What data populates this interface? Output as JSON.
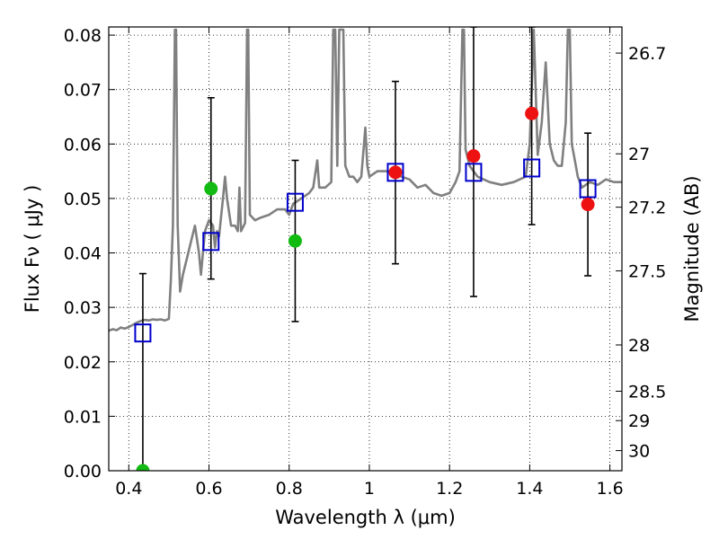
{
  "chart_data": {
    "type": "scatter",
    "xlabel": "Wavelength  λ (μm)",
    "ylabel": "Flux  Fν  ( μJy )",
    "ylabel_right": "Magnitude (AB)",
    "xlim": [
      0.35,
      1.63
    ],
    "ylim": [
      0.0,
      0.0815
    ],
    "grid": true,
    "x_ticks": [
      0.4,
      0.6,
      0.8,
      1.0,
      1.2,
      1.4,
      1.6
    ],
    "x_tick_labels": [
      "0.4",
      "0.6",
      "0.8",
      "1",
      "1.2",
      "1.4",
      "1.6"
    ],
    "y_ticks": [
      0.0,
      0.01,
      0.02,
      0.03,
      0.04,
      0.05,
      0.06,
      0.07,
      0.08
    ],
    "y_tick_labels": [
      "0.00",
      "0.01",
      "0.02",
      "0.03",
      "0.04",
      "0.05",
      "0.06",
      "0.07",
      "0.08"
    ],
    "right_ticks": [
      {
        "label": "26.7",
        "flux": 0.0767
      },
      {
        "label": "27",
        "flux": 0.0582
      },
      {
        "label": "27.2",
        "flux": 0.0484
      },
      {
        "label": "27.5",
        "flux": 0.0367
      },
      {
        "label": "28",
        "flux": 0.0231
      },
      {
        "label": "28.5",
        "flux": 0.0146
      },
      {
        "label": "29",
        "flux": 0.0092
      },
      {
        "label": "30",
        "flux": 0.0037
      }
    ],
    "series": [
      {
        "kind": "line",
        "color": "#808080",
        "points": [
          [
            0.35,
            0.0257
          ],
          [
            0.36,
            0.026
          ],
          [
            0.37,
            0.0258
          ],
          [
            0.38,
            0.0263
          ],
          [
            0.39,
            0.0261
          ],
          [
            0.4,
            0.0264
          ],
          [
            0.41,
            0.0268
          ],
          [
            0.42,
            0.0272
          ],
          [
            0.43,
            0.0275
          ],
          [
            0.44,
            0.0277
          ],
          [
            0.45,
            0.0276
          ],
          [
            0.46,
            0.0278
          ],
          [
            0.47,
            0.0277
          ],
          [
            0.48,
            0.0278
          ],
          [
            0.49,
            0.0276
          ],
          [
            0.5,
            0.0279
          ],
          [
            0.505,
            0.035
          ],
          [
            0.51,
            0.045
          ],
          [
            0.515,
            0.081
          ],
          [
            0.518,
            0.081
          ],
          [
            0.522,
            0.045
          ],
          [
            0.528,
            0.0329
          ],
          [
            0.535,
            0.036
          ],
          [
            0.545,
            0.039
          ],
          [
            0.555,
            0.042
          ],
          [
            0.565,
            0.045
          ],
          [
            0.575,
            0.04
          ],
          [
            0.58,
            0.036
          ],
          [
            0.585,
            0.04
          ],
          [
            0.59,
            0.044
          ],
          [
            0.6,
            0.046
          ],
          [
            0.61,
            0.045
          ],
          [
            0.615,
            0.041
          ],
          [
            0.62,
            0.044
          ],
          [
            0.625,
            0.043
          ],
          [
            0.635,
            0.05
          ],
          [
            0.64,
            0.054
          ],
          [
            0.645,
            0.05
          ],
          [
            0.655,
            0.045
          ],
          [
            0.665,
            0.045
          ],
          [
            0.672,
            0.044
          ],
          [
            0.676,
            0.052
          ],
          [
            0.68,
            0.044
          ],
          [
            0.69,
            0.0455
          ],
          [
            0.695,
            0.081
          ],
          [
            0.698,
            0.081
          ],
          [
            0.702,
            0.047
          ],
          [
            0.715,
            0.046
          ],
          [
            0.73,
            0.0465
          ],
          [
            0.75,
            0.047
          ],
          [
            0.77,
            0.048
          ],
          [
            0.79,
            0.048
          ],
          [
            0.8,
            0.047
          ],
          [
            0.81,
            0.049
          ],
          [
            0.83,
            0.05
          ],
          [
            0.85,
            0.051
          ],
          [
            0.86,
            0.052
          ],
          [
            0.87,
            0.057
          ],
          [
            0.875,
            0.052
          ],
          [
            0.89,
            0.052
          ],
          [
            0.905,
            0.053
          ],
          [
            0.91,
            0.081
          ],
          [
            0.915,
            0.081
          ],
          [
            0.92,
            0.056
          ],
          [
            0.925,
            0.081
          ],
          [
            0.935,
            0.081
          ],
          [
            0.94,
            0.056
          ],
          [
            0.95,
            0.054
          ],
          [
            0.96,
            0.054
          ],
          [
            0.97,
            0.053
          ],
          [
            0.98,
            0.054
          ],
          [
            0.99,
            0.063
          ],
          [
            0.995,
            0.056
          ],
          [
            1.0,
            0.054
          ],
          [
            1.02,
            0.055
          ],
          [
            1.04,
            0.055
          ],
          [
            1.06,
            0.055
          ],
          [
            1.08,
            0.054
          ],
          [
            1.1,
            0.0535
          ],
          [
            1.12,
            0.052
          ],
          [
            1.14,
            0.0525
          ],
          [
            1.16,
            0.051
          ],
          [
            1.18,
            0.0505
          ],
          [
            1.2,
            0.051
          ],
          [
            1.215,
            0.053
          ],
          [
            1.225,
            0.055
          ],
          [
            1.232,
            0.081
          ],
          [
            1.236,
            0.081
          ],
          [
            1.24,
            0.059
          ],
          [
            1.25,
            0.056
          ],
          [
            1.27,
            0.054
          ],
          [
            1.3,
            0.053
          ],
          [
            1.33,
            0.0525
          ],
          [
            1.36,
            0.053
          ],
          [
            1.39,
            0.054
          ],
          [
            1.4,
            0.06
          ],
          [
            1.41,
            0.081
          ],
          [
            1.42,
            0.058
          ],
          [
            1.43,
            0.064
          ],
          [
            1.44,
            0.075
          ],
          [
            1.45,
            0.06
          ],
          [
            1.46,
            0.057
          ],
          [
            1.47,
            0.056
          ],
          [
            1.48,
            0.056
          ],
          [
            1.49,
            0.064
          ],
          [
            1.495,
            0.081
          ],
          [
            1.5,
            0.081
          ],
          [
            1.505,
            0.06
          ],
          [
            1.51,
            0.058
          ],
          [
            1.52,
            0.054
          ],
          [
            1.53,
            0.052
          ],
          [
            1.55,
            0.053
          ],
          [
            1.57,
            0.0525
          ],
          [
            1.59,
            0.0535
          ],
          [
            1.61,
            0.053
          ],
          [
            1.63,
            0.053
          ]
        ]
      },
      {
        "kind": "errorbar",
        "color": "#000000",
        "points": [
          {
            "x": 0.435,
            "low": 0.0,
            "high": 0.0362
          },
          {
            "x": 0.605,
            "low": 0.0352,
            "high": 0.0685
          },
          {
            "x": 0.815,
            "low": 0.0274,
            "high": 0.057
          },
          {
            "x": 1.065,
            "low": 0.038,
            "high": 0.0715
          },
          {
            "x": 1.26,
            "low": 0.032,
            "high": 0.0815
          },
          {
            "x": 1.405,
            "low": 0.0452,
            "high": 0.0815
          },
          {
            "x": 1.545,
            "low": 0.0358,
            "high": 0.062
          }
        ]
      },
      {
        "kind": "square",
        "color": "#0000cc",
        "points": [
          [
            0.435,
            0.0253
          ],
          [
            0.605,
            0.0421
          ],
          [
            0.815,
            0.0493
          ],
          [
            1.065,
            0.0548
          ],
          [
            1.26,
            0.0548
          ],
          [
            1.405,
            0.0556
          ],
          [
            1.545,
            0.0518
          ]
        ]
      },
      {
        "kind": "circle",
        "color": "#11bb11",
        "points": [
          [
            0.435,
            0.0
          ],
          [
            0.605,
            0.0518
          ],
          [
            0.815,
            0.0422
          ]
        ]
      },
      {
        "kind": "circle",
        "color": "#ee1111",
        "points": [
          [
            1.065,
            0.0548
          ],
          [
            1.26,
            0.0578
          ],
          [
            1.405,
            0.0656
          ],
          [
            1.545,
            0.0489
          ]
        ]
      }
    ]
  }
}
